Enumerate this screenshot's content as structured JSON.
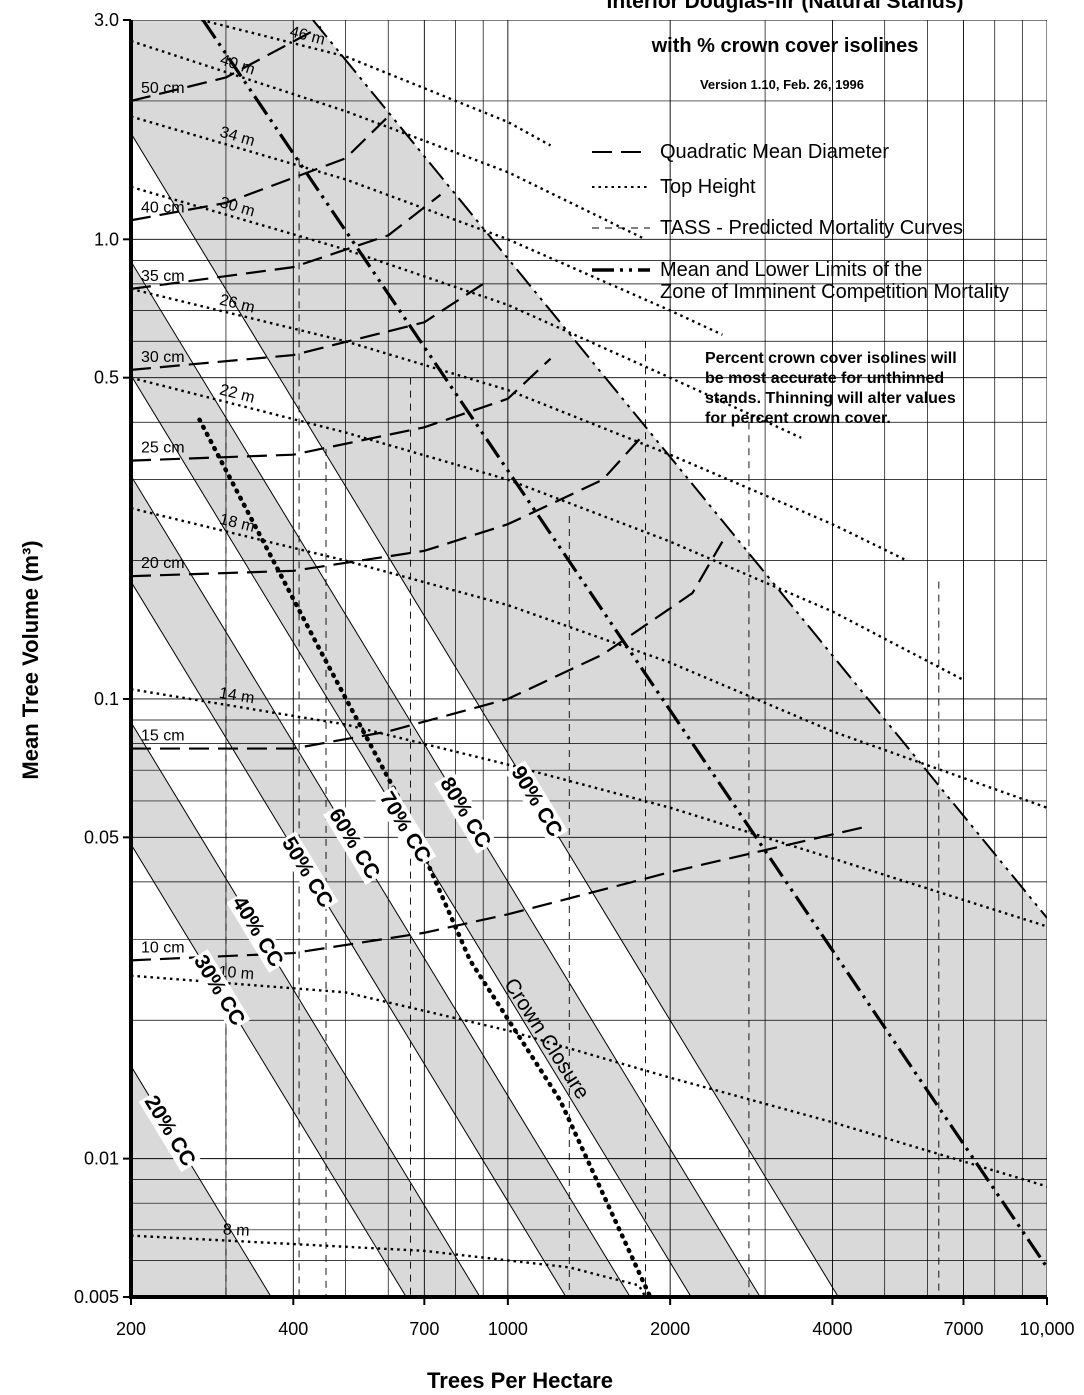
{
  "chart_data": {
    "type": "density-diagram",
    "title": "Interior Douglas-fir (Natural Stands)",
    "subtitle": "with % crown cover isolines",
    "version": "Version 1.10, Feb. 26, 1996",
    "xlabel": "Trees Per Hectare",
    "ylabel": "Mean Tree Volume (m³)",
    "log_x": true,
    "log_y": true,
    "xlim": [
      200,
      10000
    ],
    "ylim": [
      0.005,
      3.0
    ],
    "xticks": [
      200,
      400,
      700,
      1000,
      2000,
      4000,
      7000,
      {
        "value": 10000,
        "label": "10,000"
      }
    ],
    "yticks": [
      0.005,
      0.01,
      0.05,
      0.1,
      0.5,
      {
        "value": 1,
        "label": "1.0"
      },
      {
        "value": 3,
        "label": "3.0"
      }
    ],
    "xgrid_minor": [
      300,
      500,
      600,
      800,
      900,
      3000,
      5000,
      6000,
      8000,
      9000
    ],
    "ygrid_minor": [
      0.006,
      0.007,
      0.008,
      0.009,
      0.02,
      0.03,
      0.04,
      0.06,
      0.07,
      0.08,
      0.09,
      0.2,
      0.3,
      0.4,
      0.6,
      0.7,
      0.8,
      0.9,
      2
    ],
    "series": [
      {
        "name": "Quadratic Mean Diameter",
        "style": "dash",
        "curves": [
          {
            "label": "10 cm",
            "x": [
              200,
              400,
              700,
              1000,
              2000,
              4700
            ],
            "y": [
              0.027,
              0.028,
              0.031,
              0.034,
              0.042,
              0.053
            ]
          },
          {
            "label": "15 cm",
            "x": [
              200,
              400,
              600,
              1000,
              1500,
              2200,
              2500
            ],
            "y": [
              0.078,
              0.078,
              0.085,
              0.1,
              0.125,
              0.17,
              0.22
            ]
          },
          {
            "label": "20 cm",
            "x": [
              200,
              400,
              700,
              1000,
              1500,
              1800
            ],
            "y": [
              0.185,
              0.19,
              0.21,
              0.24,
              0.3,
              0.38
            ]
          },
          {
            "label": "25 cm",
            "x": [
              200,
              400,
              700,
              1000,
              1200
            ],
            "y": [
              0.33,
              0.34,
              0.39,
              0.45,
              0.55
            ]
          },
          {
            "label": "30 cm",
            "x": [
              200,
              400,
              700,
              900
            ],
            "y": [
              0.52,
              0.56,
              0.66,
              0.8
            ]
          },
          {
            "label": "35 cm",
            "x": [
              200,
              400,
              600,
              750
            ],
            "y": [
              0.78,
              0.87,
              1.02,
              1.25
            ]
          },
          {
            "label": "40 cm",
            "x": [
              200,
              300,
              500,
              600
            ],
            "y": [
              1.1,
              1.2,
              1.5,
              1.85
            ]
          },
          {
            "label": "50 cm",
            "x": [
              200,
              300,
              450
            ],
            "y": [
              2.0,
              2.25,
              2.9
            ]
          }
        ]
      },
      {
        "name": "Top Height",
        "style": "dot",
        "curves": [
          {
            "label": "8 m",
            "x": [
              200,
              700,
              1300,
              1750,
              1800
            ],
            "y": [
              0.0068,
              0.0063,
              0.0058,
              0.0053,
              0.005
            ]
          },
          {
            "label": "10 m",
            "x": [
              200,
              500,
              1000,
              2000,
              4000,
              10000
            ],
            "y": [
              0.025,
              0.023,
              0.019,
              0.015,
              0.012,
              0.0087
            ]
          },
          {
            "label": "14 m",
            "x": [
              200,
              500,
              1000,
              2000,
              4000,
              10000
            ],
            "y": [
              0.105,
              0.088,
              0.072,
              0.058,
              0.045,
              0.032
            ]
          },
          {
            "label": "18 m",
            "x": [
              200,
              500,
              1000,
              2000,
              4000,
              10000
            ],
            "y": [
              0.26,
              0.2,
              0.16,
              0.12,
              0.085,
              0.058
            ]
          },
          {
            "label": "22 m",
            "x": [
              200,
              500,
              1000,
              2000,
              4000,
              7000
            ],
            "y": [
              0.5,
              0.38,
              0.3,
              0.22,
              0.155,
              0.11
            ]
          },
          {
            "label": "26 m",
            "x": [
              200,
              500,
              1000,
              2000,
              4000,
              5500
            ],
            "y": [
              0.78,
              0.6,
              0.47,
              0.34,
              0.24,
              0.2
            ]
          },
          {
            "label": "30 m",
            "x": [
              200,
              500,
              1000,
              2000,
              3500
            ],
            "y": [
              1.3,
              0.95,
              0.72,
              0.5,
              0.37
            ]
          },
          {
            "label": "34 m",
            "x": [
              200,
              500,
              1000,
              2000,
              2500
            ],
            "y": [
              1.85,
              1.35,
              1.0,
              0.7,
              0.62
            ]
          },
          {
            "label": "40 m",
            "x": [
              200,
              500,
              1000,
              1800
            ],
            "y": [
              2.7,
              1.9,
              1.4,
              1.0
            ]
          },
          {
            "label": "46 m",
            "x": [
              270,
              500,
              1000,
              1200
            ],
            "y": [
              3.0,
              2.5,
              1.8,
              1.6
            ]
          }
        ]
      },
      {
        "name": "TASS - Predicted Mortality Curves",
        "style": "thin-dash",
        "curves": [
          {
            "x": [
              300,
              300
            ],
            "y": [
              0.5,
              0.005
            ]
          },
          {
            "x": [
              410,
              410
            ],
            "y": [
              1.5,
              0.005
            ]
          },
          {
            "x": [
              460,
              460
            ],
            "y": [
              0.35,
              0.005
            ]
          },
          {
            "x": [
              660,
              660
            ],
            "y": [
              0.5,
              0.005
            ]
          },
          {
            "x": [
              1300,
              1300
            ],
            "y": [
              0.25,
              0.005
            ]
          },
          {
            "x": [
              1800,
              1800
            ],
            "y": [
              0.6,
              0.005
            ]
          },
          {
            "x": [
              2800,
              2800
            ],
            "y": [
              0.4,
              0.005
            ]
          },
          {
            "x": [
              6300,
              6300
            ],
            "y": [
              0.18,
              0.005
            ]
          }
        ]
      },
      {
        "name": [
          "Mean and Lower Limits of  the",
          "Zone of Imminent Competition Mortality"
        ],
        "style": "dash-dot-dot",
        "curves": [
          {
            "x": [
              272,
              10000
            ],
            "y": [
              3.0,
              0.0058
            ]
          },
          {
            "x": [
              435,
              10000
            ],
            "y": [
              3.0,
              0.0334
            ]
          }
        ]
      }
    ],
    "crown_cover": [
      {
        "label": "20% CC",
        "x": [
          200,
          364
        ],
        "y": [
          0.0159,
          0.005
        ]
      },
      {
        "label": "30% CC",
        "x": [
          200,
          648
        ],
        "y": [
          0.0483,
          0.005
        ]
      },
      {
        "label": "40% CC",
        "x": [
          200,
          888
        ],
        "y": [
          0.089,
          0.005
        ]
      },
      {
        "label": "50% CC",
        "x": [
          200,
          1282
        ],
        "y": [
          0.18,
          0.005
        ]
      },
      {
        "label": "60% CC",
        "x": [
          200,
          1686
        ],
        "y": [
          0.306,
          0.005
        ]
      },
      {
        "label": "70% CC",
        "x": [
          200,
          2188
        ],
        "y": [
          0.506,
          0.005
        ]
      },
      {
        "label": "80% CC",
        "x": [
          200,
          2938
        ],
        "y": [
          0.895,
          0.005
        ]
      },
      {
        "label": "90% CC",
        "x": [
          200,
          4102
        ],
        "y": [
          1.7,
          0.005
        ]
      }
    ],
    "crown_closure": {
      "label": "Crown Closure",
      "x": [
        268,
        448,
        632,
        851,
        1250,
        1837
      ],
      "y": [
        0.405,
        0.128,
        0.06,
        0.027,
        0.0134,
        0.005
      ]
    },
    "note": [
      "Percent crown cover isolines will",
      "be most accurate for unthinned",
      "stands. Thinning will alter values",
      "for percent crown cover."
    ]
  }
}
